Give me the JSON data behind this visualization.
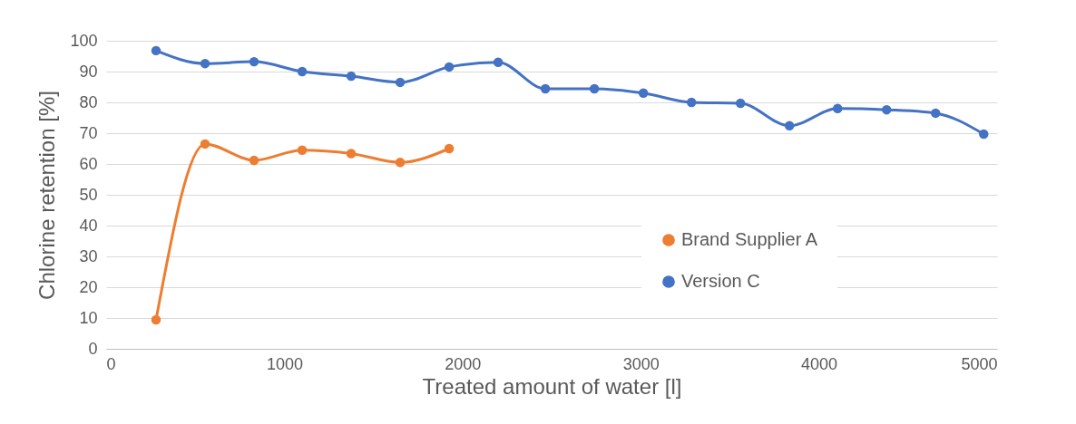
{
  "chart_data": {
    "type": "line",
    "xlabel": "Treated amount of water [l]",
    "ylabel": "Chlorine retention [%]",
    "xlim": [
      0,
      5000
    ],
    "xticks": [
      0,
      1000,
      2000,
      3000,
      4000,
      5000
    ],
    "ylim": [
      0,
      100
    ],
    "yticks": [
      0,
      10,
      20,
      30,
      40,
      50,
      60,
      70,
      80,
      90,
      100
    ],
    "grid": "y",
    "legend": "right",
    "marker": "circle",
    "line_style": "solid",
    "series": [
      {
        "name": "Brand Supplier A",
        "color": "#ed7d31",
        "x": [
          280,
          555,
          830,
          1100,
          1375,
          1650,
          1925
        ],
        "values": [
          9.4,
          66.5,
          61.2,
          64.5,
          63.4,
          60.5,
          65
        ]
      },
      {
        "name": "Version C",
        "color": "#4472c4",
        "x": [
          280,
          555,
          830,
          1100,
          1375,
          1650,
          1925,
          2200,
          2465,
          2740,
          3015,
          3285,
          3560,
          3835,
          4105,
          4380,
          4655,
          4925
        ],
        "values": [
          96.8,
          92.6,
          93.2,
          90,
          88.5,
          86.5,
          91.5,
          93,
          84.4,
          84.4,
          83,
          80,
          79.7,
          72.4,
          78,
          77.6,
          76.5,
          69.7
        ]
      }
    ]
  }
}
